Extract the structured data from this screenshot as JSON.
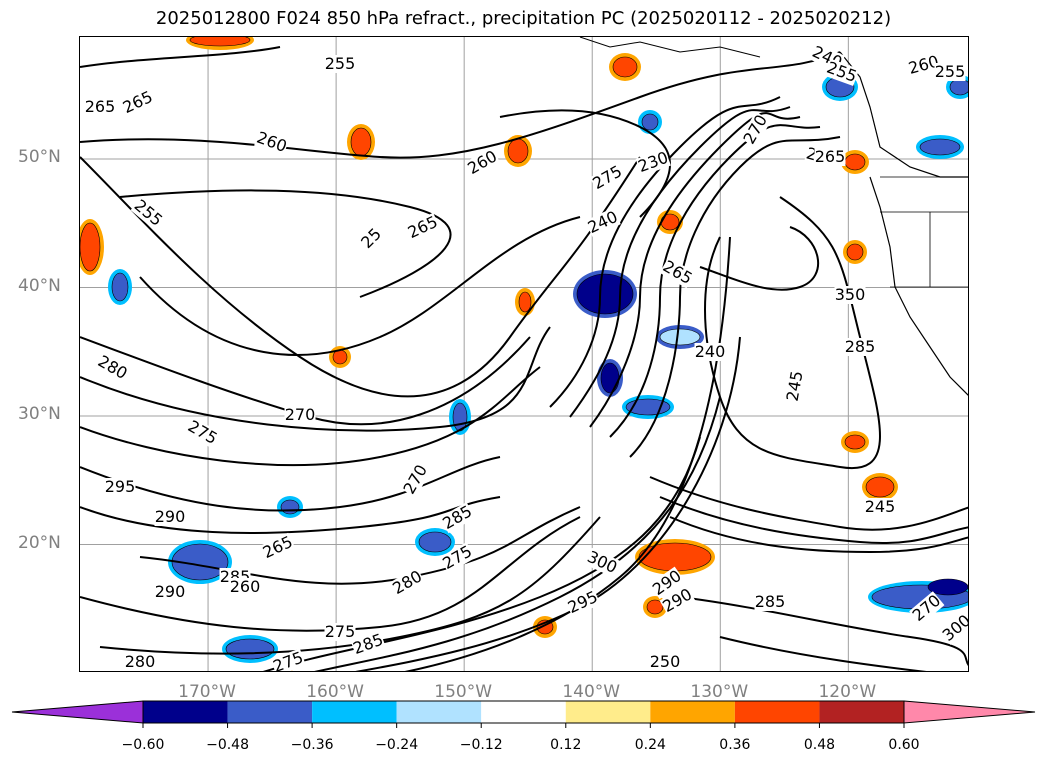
{
  "title": "2025012800 F024 850 hPa refract., precipitation PC (2025020112 - 2025020212)",
  "map": {
    "lat_labels": [
      {
        "text": "50°N",
        "lat": 50
      },
      {
        "text": "40°N",
        "lat": 40
      },
      {
        "text": "30°N",
        "lat": 30
      },
      {
        "text": "20°N",
        "lat": 20
      }
    ],
    "lon_labels": [
      {
        "text": "170°W",
        "lon": -170
      },
      {
        "text": "160°W",
        "lon": -160
      },
      {
        "text": "150°W",
        "lon": -150
      },
      {
        "text": "140°W",
        "lon": -140
      },
      {
        "text": "130°W",
        "lon": -130
      },
      {
        "text": "120°W",
        "lon": -120
      }
    ],
    "extent": {
      "lon_min": -180,
      "lon_max": -110.5,
      "lat_min": 10,
      "lat_max": 59.5
    },
    "contour_labels": [
      "265",
      "265",
      "260",
      "255",
      "260",
      "275",
      "230",
      "240",
      "270",
      "255",
      "260",
      "255",
      "260",
      "255",
      "25",
      "265",
      "240",
      "265",
      "280",
      "240",
      "260",
      "265",
      "350",
      "285",
      "270",
      "275",
      "245",
      "295",
      "270",
      "285",
      "245",
      "265",
      "285",
      "300",
      "290",
      "280",
      "275",
      "295",
      "290",
      "285",
      "270",
      "300",
      "250",
      "275",
      "280",
      "285",
      "290",
      "275",
      "260",
      "290"
    ]
  },
  "colorbar": {
    "tick_labels": [
      "−0.60",
      "−0.48",
      "−0.36",
      "−0.24",
      "−0.12",
      "0.12",
      "0.24",
      "0.36",
      "0.48",
      "0.60"
    ],
    "colors": [
      "#9b30d9",
      "#00008b",
      "#3a5cc8",
      "#00bfff",
      "#b0e2ff",
      "#ffffff",
      "#ffec8b",
      "#ffa500",
      "#ff4500",
      "#b22222",
      "#ff88aa"
    ],
    "extend": "both"
  },
  "colors": {
    "contour": "#000000",
    "grid": "#a0a0a0",
    "label_gray": "#808080"
  }
}
